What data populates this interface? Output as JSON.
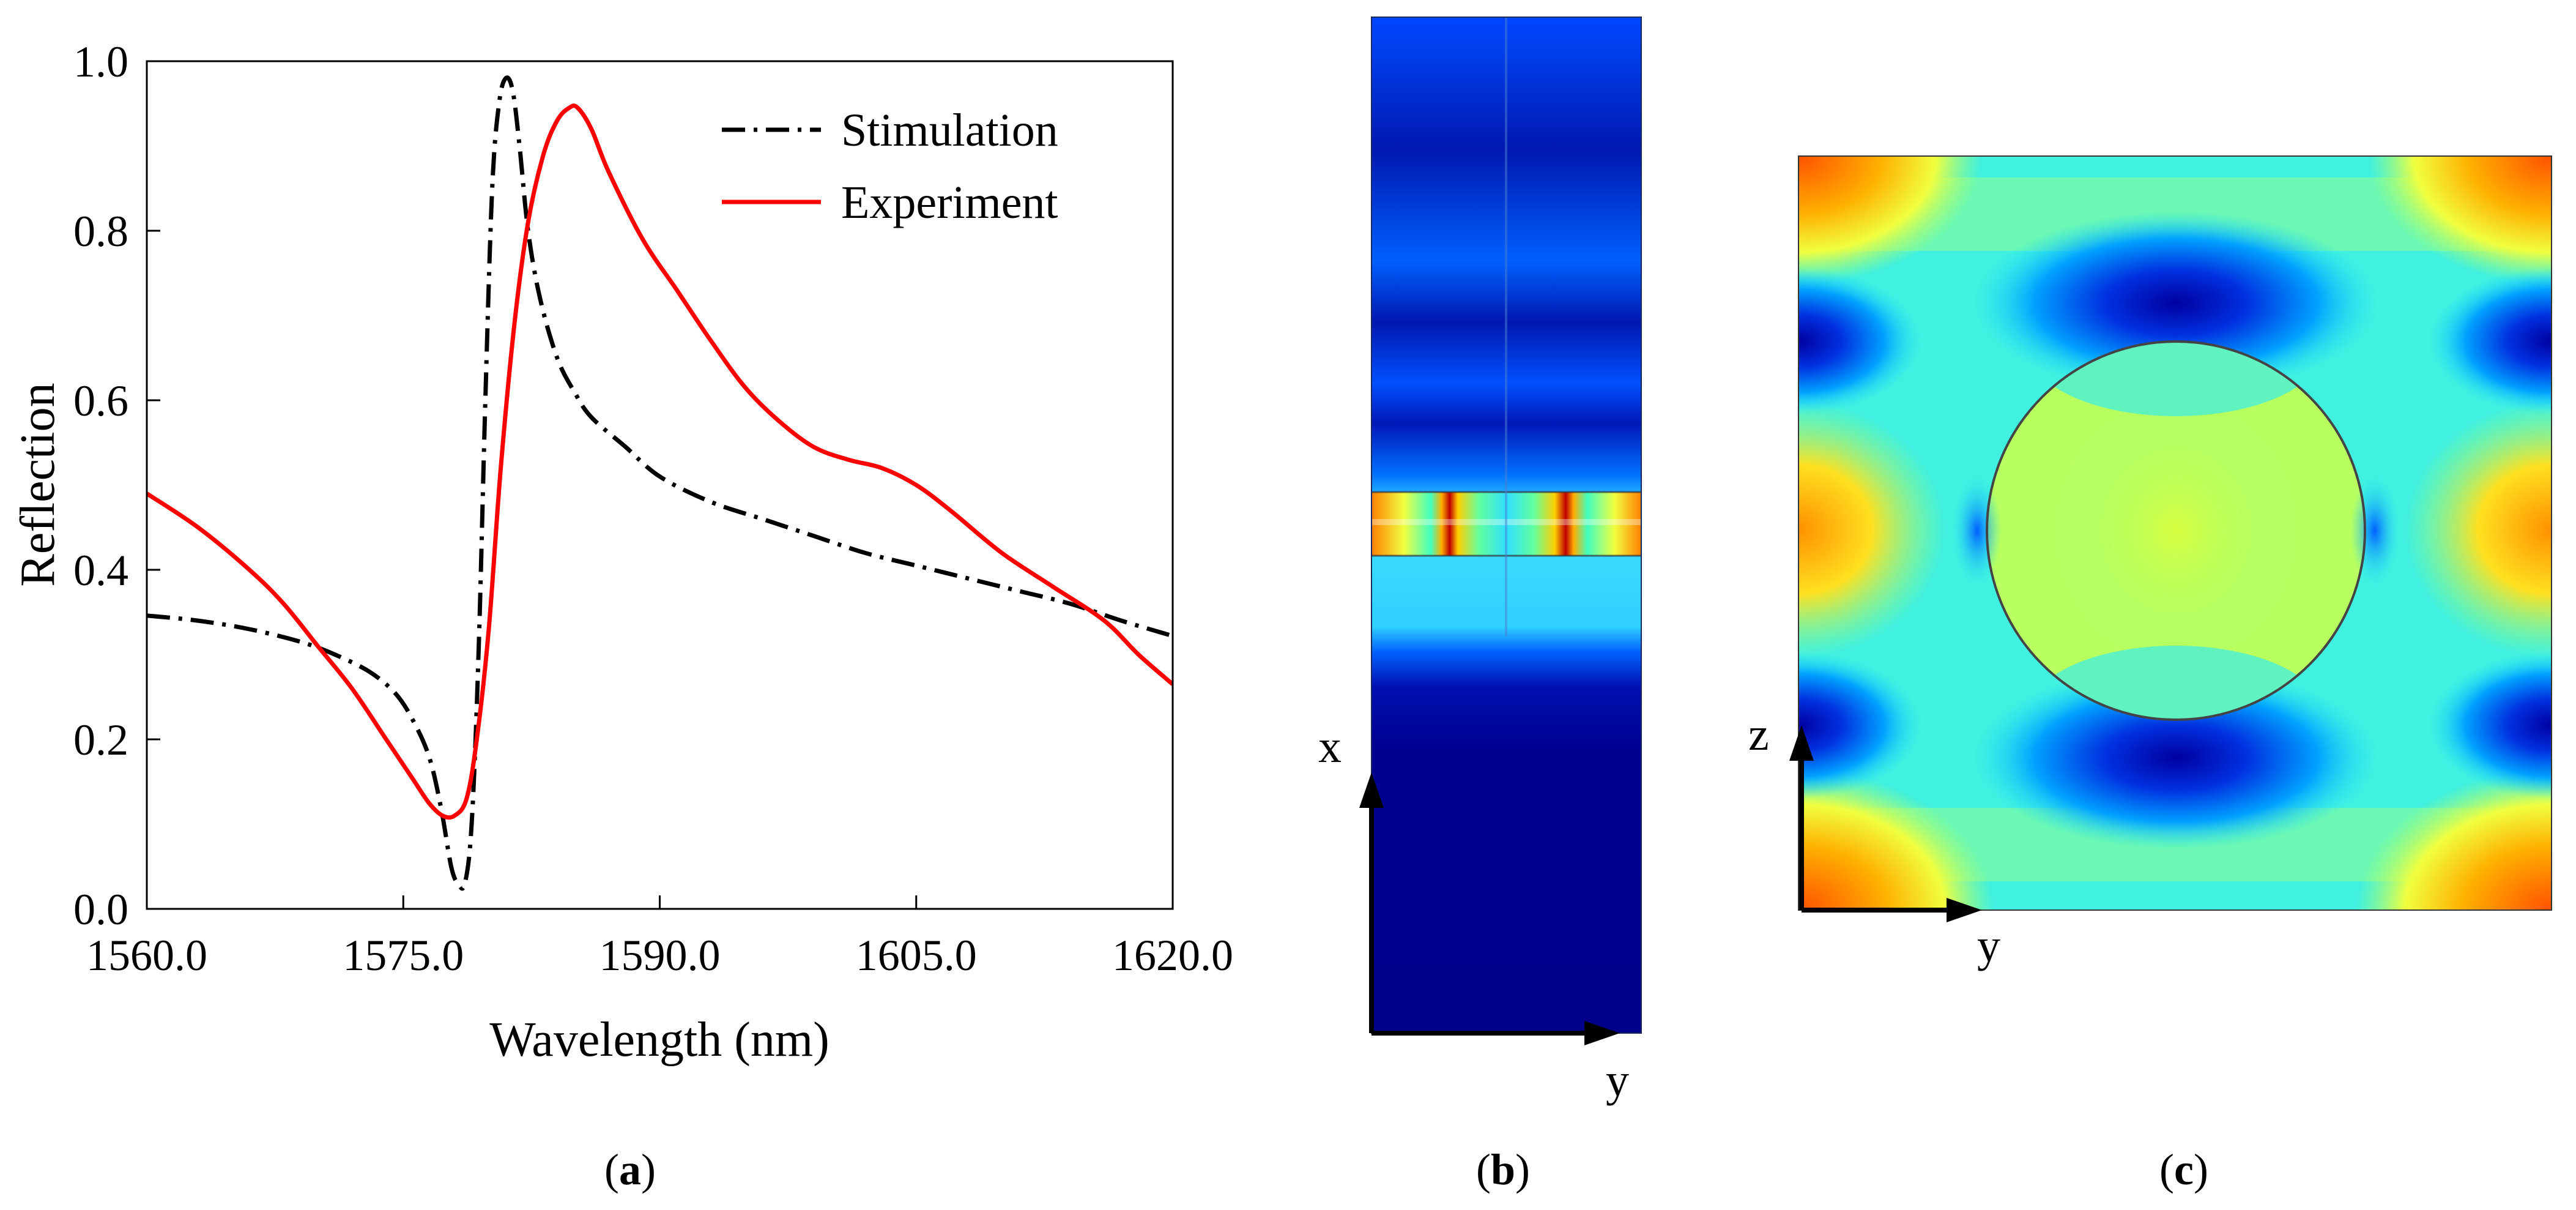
{
  "chart_data": [
    {
      "type": "line",
      "panel": "a",
      "xlabel": "Wavelength (nm)",
      "ylabel": "Reflection",
      "xlim": [
        1560,
        1620
      ],
      "ylim": [
        0,
        1
      ],
      "x_ticks": [
        "1560.0",
        "1575.0",
        "1590.0",
        "1605.0",
        "1620.0"
      ],
      "y_ticks": [
        "0.0",
        "0.2",
        "0.4",
        "0.6",
        "0.8",
        "1.0"
      ],
      "legend_position": "top-right",
      "series": [
        {
          "name": "Stimulation",
          "color": "#000000",
          "style": "dash-dot",
          "x": [
            1560,
            1563,
            1566,
            1569,
            1571,
            1573,
            1574.5,
            1575.5,
            1576.5,
            1577.2,
            1577.8,
            1578.2,
            1578.6,
            1579,
            1579.4,
            1579.8,
            1580.2,
            1580.6,
            1581,
            1581.4,
            1581.8,
            1582.3,
            1583,
            1584,
            1585,
            1586,
            1588,
            1590,
            1593,
            1596,
            1599,
            1602,
            1605,
            1608,
            1611,
            1614,
            1617,
            1620
          ],
          "y": [
            0.346,
            0.34,
            0.33,
            0.315,
            0.3,
            0.28,
            0.255,
            0.225,
            0.18,
            0.12,
            0.05,
            0.03,
            0.03,
            0.1,
            0.3,
            0.6,
            0.85,
            0.95,
            0.98,
            0.965,
            0.9,
            0.8,
            0.72,
            0.65,
            0.61,
            0.58,
            0.545,
            0.51,
            0.48,
            0.46,
            0.44,
            0.42,
            0.405,
            0.39,
            0.375,
            0.36,
            0.34,
            0.322
          ]
        },
        {
          "name": "Experiment",
          "color": "#ff0000",
          "style": "solid",
          "x": [
            1560,
            1563,
            1566,
            1568,
            1570,
            1572,
            1574,
            1575.5,
            1576.5,
            1577.3,
            1578,
            1578.7,
            1579.3,
            1580,
            1580.7,
            1581.5,
            1582.3,
            1583.2,
            1584,
            1584.7,
            1585.2,
            1586,
            1587,
            1589,
            1591,
            1593,
            1595,
            1597,
            1599,
            1601,
            1603,
            1605,
            1607,
            1610,
            1613,
            1616,
            1618,
            1620
          ],
          "y": [
            0.49,
            0.45,
            0.4,
            0.36,
            0.31,
            0.26,
            0.2,
            0.155,
            0.125,
            0.11,
            0.11,
            0.13,
            0.2,
            0.33,
            0.52,
            0.69,
            0.81,
            0.89,
            0.93,
            0.945,
            0.945,
            0.92,
            0.87,
            0.79,
            0.73,
            0.67,
            0.615,
            0.575,
            0.545,
            0.53,
            0.52,
            0.5,
            0.47,
            0.42,
            0.38,
            0.34,
            0.3,
            0.265
          ]
        }
      ]
    },
    {
      "type": "heatmap",
      "panel": "b",
      "axis_labels": [
        "x",
        "y"
      ],
      "colormap": "jet"
    },
    {
      "type": "heatmap",
      "panel": "c",
      "axis_labels": [
        "z",
        "y"
      ],
      "colormap": "jet"
    }
  ],
  "captions": {
    "a": "a",
    "b": "b",
    "c": "c"
  },
  "colors": {
    "jet_dark_blue": "#00008f",
    "jet_blue": "#0050ff",
    "jet_cyan": "#20d0ff",
    "jet_green": "#40ffb0",
    "jet_yellow": "#f0ff20",
    "jet_orange": "#ff9000",
    "jet_red": "#d00000"
  }
}
